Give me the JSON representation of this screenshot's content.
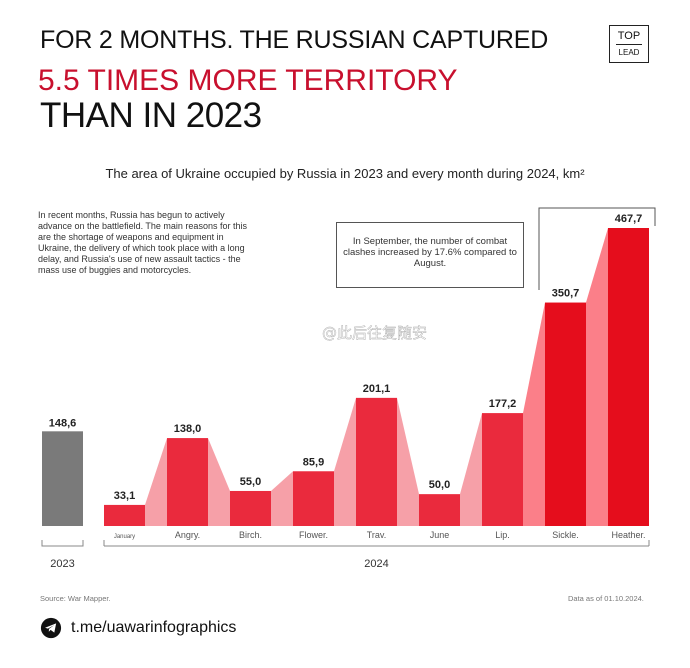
{
  "header": {
    "line1": "FOR 2 MONTHS. THE RUSSIAN CAPTURED",
    "line2": "5.5 TIMES MORE TERRITORY",
    "line3": "THAN IN 2023"
  },
  "logo": {
    "top": "TOP",
    "bottom": "LEAD"
  },
  "subtitle": "The area of Ukraine occupied by Russia in 2023 and every month during 2024, km²",
  "note": "In recent months, Russia has begun to actively advance on the battlefield. The main reasons for this are the shortage of weapons and equipment in Ukraine, the delivery of which took place with a long delay, and Russia's use of new assault tactics - the mass use of buggies and motorcycles.",
  "callout": "In September, the number of combat clashes increased by 17.6% compared to August.",
  "footer": {
    "source": "Source: War Mapper.",
    "date": "Data as of 01.10.2024.",
    "telegram": "t.me/uawarinfographics"
  },
  "watermark": "@此后往复随安",
  "colors": {
    "gray_bar": "#7a7a7a",
    "red": "#ea2a3d",
    "light": "#f6a0a8",
    "dark": "#e50d1c",
    "dark_fill": "#fb7f89"
  },
  "chart_data": {
    "type": "bar",
    "groups": [
      {
        "label": "2023",
        "categories": [
          ""
        ],
        "values": [
          148.6
        ],
        "value_labels": [
          "148,6"
        ]
      },
      {
        "label": "2024",
        "categories": [
          "January",
          "Angry.",
          "Birch.",
          "Flower.",
          "Trav.",
          "June",
          "Lip.",
          "Sickle.",
          "Heather."
        ],
        "values": [
          33.1,
          138.0,
          55.0,
          85.9,
          201.1,
          50.0,
          177.2,
          350.7,
          467.7
        ],
        "value_labels": [
          "33,1",
          "138,0",
          "55,0",
          "85,9",
          "201,1",
          "50,0",
          "177,2",
          "350,7",
          "467,7"
        ]
      }
    ],
    "ylim": [
      0,
      467.7
    ]
  }
}
